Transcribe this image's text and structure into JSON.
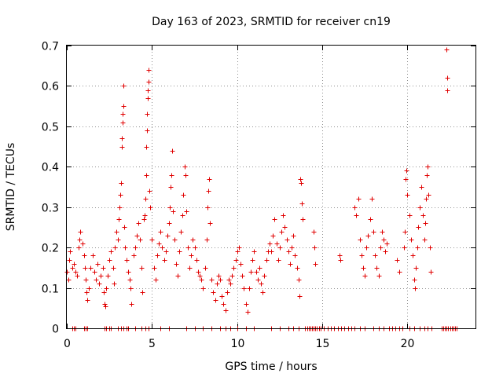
{
  "chart_data": {
    "type": "scatter",
    "title": "Day 163 of 2023, SRMTID for receiver cn19",
    "xlabel": "GPS time / hours",
    "ylabel": "SRMTID / TECUs",
    "xlim": [
      0,
      24
    ],
    "ylim": [
      0,
      0.7
    ],
    "xticks": [
      0,
      5,
      10,
      15,
      20
    ],
    "yticks": [
      0,
      0.1,
      0.2,
      0.3,
      0.4,
      0.5,
      0.6,
      0.7
    ],
    "grid": true,
    "marker": "+",
    "series": [
      {
        "name": "SRMTID",
        "color": "#e00000",
        "points": [
          [
            0.0,
            0.14
          ],
          [
            0.1,
            0.12
          ],
          [
            0.15,
            0.17
          ],
          [
            0.2,
            0.19
          ],
          [
            0.3,
            0.15
          ],
          [
            0.4,
            0.16
          ],
          [
            0.5,
            0.14
          ],
          [
            0.6,
            0.13
          ],
          [
            0.7,
            0.2
          ],
          [
            0.75,
            0.22
          ],
          [
            0.8,
            0.24
          ],
          [
            0.9,
            0.21
          ],
          [
            1.0,
            0.18
          ],
          [
            1.05,
            0.15
          ],
          [
            1.1,
            0.12
          ],
          [
            1.15,
            0.09
          ],
          [
            1.2,
            0.07
          ],
          [
            1.3,
            0.1
          ],
          [
            1.4,
            0.15
          ],
          [
            1.5,
            0.18
          ],
          [
            1.6,
            0.14
          ],
          [
            1.7,
            0.12
          ],
          [
            1.8,
            0.16
          ],
          [
            1.9,
            0.11
          ],
          [
            2.0,
            0.13
          ],
          [
            2.1,
            0.15
          ],
          [
            2.15,
            0.09
          ],
          [
            2.2,
            0.06
          ],
          [
            2.25,
            0.055
          ],
          [
            2.3,
            0.1
          ],
          [
            2.4,
            0.13
          ],
          [
            2.5,
            0.17
          ],
          [
            2.6,
            0.19
          ],
          [
            2.7,
            0.15
          ],
          [
            2.75,
            0.11
          ],
          [
            2.8,
            0.2
          ],
          [
            2.9,
            0.24
          ],
          [
            3.0,
            0.22
          ],
          [
            3.05,
            0.27
          ],
          [
            3.1,
            0.3
          ],
          [
            3.15,
            0.33
          ],
          [
            3.2,
            0.36
          ],
          [
            3.22,
            0.45
          ],
          [
            3.24,
            0.47
          ],
          [
            3.26,
            0.51
          ],
          [
            3.28,
            0.53
          ],
          [
            3.3,
            0.55
          ],
          [
            3.32,
            0.6
          ],
          [
            3.35,
            0.25
          ],
          [
            3.4,
            0.2
          ],
          [
            3.5,
            0.17
          ],
          [
            3.6,
            0.14
          ],
          [
            3.7,
            0.12
          ],
          [
            3.75,
            0.1
          ],
          [
            3.8,
            0.06
          ],
          [
            3.9,
            0.18
          ],
          [
            4.0,
            0.2
          ],
          [
            4.1,
            0.23
          ],
          [
            4.2,
            0.26
          ],
          [
            4.3,
            0.22
          ],
          [
            4.4,
            0.15
          ],
          [
            4.45,
            0.09
          ],
          [
            4.5,
            0.27
          ],
          [
            4.55,
            0.28
          ],
          [
            4.6,
            0.32
          ],
          [
            4.65,
            0.38
          ],
          [
            4.68,
            0.45
          ],
          [
            4.7,
            0.49
          ],
          [
            4.72,
            0.53
          ],
          [
            4.74,
            0.57
          ],
          [
            4.76,
            0.59
          ],
          [
            4.78,
            0.61
          ],
          [
            4.8,
            0.64
          ],
          [
            4.85,
            0.34
          ],
          [
            4.9,
            0.3
          ],
          [
            5.0,
            0.22
          ],
          [
            5.1,
            0.15
          ],
          [
            5.2,
            0.12
          ],
          [
            5.3,
            0.18
          ],
          [
            5.4,
            0.21
          ],
          [
            5.5,
            0.24
          ],
          [
            5.6,
            0.2
          ],
          [
            5.7,
            0.17
          ],
          [
            5.8,
            0.19
          ],
          [
            5.9,
            0.23
          ],
          [
            6.0,
            0.26
          ],
          [
            6.05,
            0.3
          ],
          [
            6.1,
            0.35
          ],
          [
            6.15,
            0.38
          ],
          [
            6.2,
            0.44
          ],
          [
            6.25,
            0.29
          ],
          [
            6.3,
            0.22
          ],
          [
            6.4,
            0.16
          ],
          [
            6.5,
            0.13
          ],
          [
            6.6,
            0.19
          ],
          [
            6.7,
            0.24
          ],
          [
            6.8,
            0.28
          ],
          [
            6.85,
            0.33
          ],
          [
            6.9,
            0.4
          ],
          [
            6.95,
            0.38
          ],
          [
            7.0,
            0.29
          ],
          [
            7.1,
            0.2
          ],
          [
            7.2,
            0.15
          ],
          [
            7.3,
            0.18
          ],
          [
            7.4,
            0.22
          ],
          [
            7.5,
            0.2
          ],
          [
            7.6,
            0.17
          ],
          [
            7.7,
            0.14
          ],
          [
            7.8,
            0.13
          ],
          [
            7.9,
            0.12
          ],
          [
            8.0,
            0.1
          ],
          [
            8.1,
            0.15
          ],
          [
            8.2,
            0.22
          ],
          [
            8.25,
            0.3
          ],
          [
            8.3,
            0.34
          ],
          [
            8.35,
            0.37
          ],
          [
            8.4,
            0.26
          ],
          [
            8.5,
            0.12
          ],
          [
            8.6,
            0.09
          ],
          [
            8.7,
            0.07
          ],
          [
            8.8,
            0.11
          ],
          [
            8.9,
            0.13
          ],
          [
            9.0,
            0.12
          ],
          [
            9.1,
            0.08
          ],
          [
            9.2,
            0.06
          ],
          [
            9.3,
            0.045
          ],
          [
            9.4,
            0.09
          ],
          [
            9.5,
            0.12
          ],
          [
            9.6,
            0.11
          ],
          [
            9.7,
            0.13
          ],
          [
            9.8,
            0.15
          ],
          [
            9.9,
            0.17
          ],
          [
            10.0,
            0.19
          ],
          [
            10.1,
            0.2
          ],
          [
            10.2,
            0.16
          ],
          [
            10.3,
            0.13
          ],
          [
            10.4,
            0.1
          ],
          [
            10.5,
            0.06
          ],
          [
            10.6,
            0.04
          ],
          [
            10.7,
            0.1
          ],
          [
            10.8,
            0.14
          ],
          [
            10.9,
            0.17
          ],
          [
            11.0,
            0.19
          ],
          [
            11.1,
            0.14
          ],
          [
            11.2,
            0.12
          ],
          [
            11.3,
            0.15
          ],
          [
            11.4,
            0.11
          ],
          [
            11.5,
            0.09
          ],
          [
            11.6,
            0.13
          ],
          [
            11.7,
            0.17
          ],
          [
            11.8,
            0.19
          ],
          [
            11.9,
            0.21
          ],
          [
            12.0,
            0.19
          ],
          [
            12.1,
            0.23
          ],
          [
            12.2,
            0.27
          ],
          [
            12.3,
            0.21
          ],
          [
            12.4,
            0.17
          ],
          [
            12.5,
            0.2
          ],
          [
            12.6,
            0.24
          ],
          [
            12.7,
            0.28
          ],
          [
            12.8,
            0.25
          ],
          [
            12.9,
            0.22
          ],
          [
            13.0,
            0.19
          ],
          [
            13.1,
            0.16
          ],
          [
            13.2,
            0.2
          ],
          [
            13.3,
            0.23
          ],
          [
            13.4,
            0.18
          ],
          [
            13.5,
            0.15
          ],
          [
            13.6,
            0.12
          ],
          [
            13.65,
            0.08
          ],
          [
            13.7,
            0.37
          ],
          [
            13.75,
            0.36
          ],
          [
            13.8,
            0.31
          ],
          [
            13.85,
            0.27
          ],
          [
            14.5,
            0.24
          ],
          [
            14.55,
            0.2
          ],
          [
            14.6,
            0.16
          ],
          [
            16.0,
            0.18
          ],
          [
            16.05,
            0.17
          ],
          [
            16.9,
            0.3
          ],
          [
            17.0,
            0.28
          ],
          [
            17.1,
            0.32
          ],
          [
            17.2,
            0.22
          ],
          [
            17.3,
            0.18
          ],
          [
            17.4,
            0.15
          ],
          [
            17.5,
            0.13
          ],
          [
            17.6,
            0.2
          ],
          [
            17.7,
            0.23
          ],
          [
            17.8,
            0.27
          ],
          [
            17.9,
            0.32
          ],
          [
            18.0,
            0.24
          ],
          [
            18.1,
            0.18
          ],
          [
            18.2,
            0.15
          ],
          [
            18.3,
            0.13
          ],
          [
            18.4,
            0.2
          ],
          [
            18.5,
            0.24
          ],
          [
            18.6,
            0.22
          ],
          [
            18.7,
            0.19
          ],
          [
            18.8,
            0.21
          ],
          [
            19.4,
            0.17
          ],
          [
            19.5,
            0.14
          ],
          [
            19.8,
            0.2
          ],
          [
            19.85,
            0.24
          ],
          [
            19.9,
            0.37
          ],
          [
            19.95,
            0.39
          ],
          [
            20.0,
            0.33
          ],
          [
            20.1,
            0.28
          ],
          [
            20.2,
            0.22
          ],
          [
            20.3,
            0.18
          ],
          [
            20.4,
            0.12
          ],
          [
            20.45,
            0.1
          ],
          [
            20.5,
            0.15
          ],
          [
            20.6,
            0.2
          ],
          [
            20.65,
            0.25
          ],
          [
            20.7,
            0.3
          ],
          [
            20.8,
            0.35
          ],
          [
            20.9,
            0.28
          ],
          [
            21.0,
            0.22
          ],
          [
            21.05,
            0.26
          ],
          [
            21.1,
            0.32
          ],
          [
            21.15,
            0.38
          ],
          [
            21.2,
            0.4
          ],
          [
            21.25,
            0.33
          ],
          [
            21.3,
            0.2
          ],
          [
            21.35,
            0.14
          ],
          [
            22.3,
            0.69
          ],
          [
            22.32,
            0.62
          ],
          [
            22.34,
            0.59
          ]
        ],
        "zero_points": [
          0.3,
          0.4,
          0.5,
          1.0,
          1.1,
          1.2,
          2.2,
          2.3,
          2.5,
          2.6,
          3.0,
          3.2,
          3.3,
          3.5,
          3.6,
          4.0,
          4.4,
          4.6,
          4.8,
          5.5,
          6.0,
          7.0,
          7.5,
          8.0,
          8.5,
          9.0,
          9.3,
          9.6,
          10.0,
          10.5,
          11.0,
          12.0,
          12.5,
          13.0,
          13.3,
          13.6,
          14.0,
          14.1,
          14.2,
          14.3,
          14.4,
          14.5,
          14.6,
          14.7,
          14.8,
          14.9,
          15.1,
          15.3,
          15.5,
          15.7,
          15.9,
          16.1,
          16.3,
          16.5,
          16.7,
          16.9,
          17.2,
          17.5,
          18.0,
          18.3,
          18.6,
          18.9,
          19.1,
          19.3,
          19.5,
          19.7,
          20.1,
          20.4,
          20.7,
          21.0,
          21.2,
          21.4,
          22.0,
          22.1,
          22.2,
          22.3,
          22.4,
          22.5,
          22.6,
          22.7,
          22.8,
          22.9
        ]
      }
    ]
  }
}
